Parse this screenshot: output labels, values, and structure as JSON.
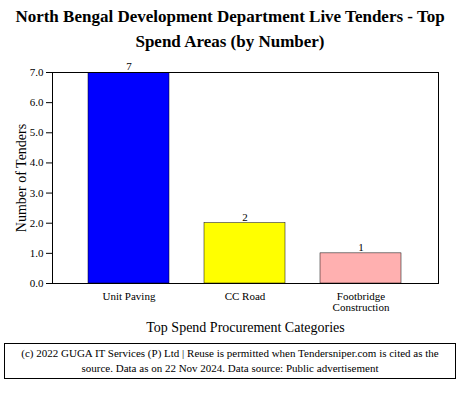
{
  "chart_data": {
    "type": "bar",
    "title": "North Bengal Development Department Live Tenders - Top Spend Areas (by Number)",
    "x_label": "Top Spend Procurement Categories",
    "y_label": "Number of Tenders",
    "caption": "(c) 2022 GUGA IT Services (P) Ltd | Reuse is permitted when Tendersniper.com is cited as the source. Data as on 22 Nov 2024. Data source: Public advertisement",
    "categories": [
      "Unit Paving",
      "CC Road",
      "Footbridge Construction"
    ],
    "values": [
      7,
      2,
      1
    ],
    "colors": [
      "#0000ff",
      "#ffff00",
      "#ffb0b0"
    ],
    "ylim": [
      0,
      7
    ],
    "yticks": [
      0,
      1,
      2,
      3,
      4,
      5,
      6,
      7
    ],
    "grid": false,
    "data_labels": true
  }
}
